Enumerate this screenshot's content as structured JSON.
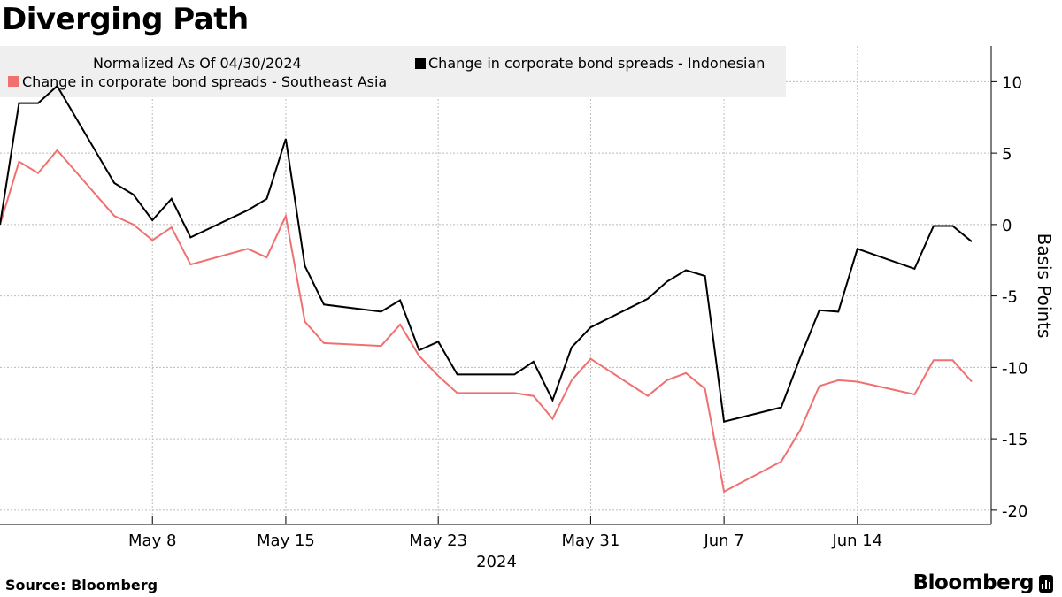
{
  "title": "Diverging Path",
  "source": "Source: Bloomberg",
  "brand": "Bloomberg",
  "colors": {
    "indonesian": "#000000",
    "southeast_asia": "#f07070",
    "grid": "#bbbbbb",
    "legend_bg": "#efefef"
  },
  "chart_data": {
    "type": "line",
    "title": "Diverging Path",
    "ylabel": "Basis Points",
    "xlabel": "2024",
    "legend_note": "Normalized As Of 04/30/2024",
    "ylim": [
      -21,
      12.5
    ],
    "y_ticks": [
      10,
      5,
      0,
      -5,
      -10,
      -15,
      -20
    ],
    "grid": true,
    "legend_placement": "top-left",
    "x_tick_labels": [
      {
        "label": "May 8",
        "date": "2024-05-08"
      },
      {
        "label": "May 15",
        "date": "2024-05-15"
      },
      {
        "label": "May 23",
        "date": "2024-05-23"
      },
      {
        "label": "May 31",
        "date": "2024-05-31"
      },
      {
        "label": "Jun 7",
        "date": "2024-06-07"
      },
      {
        "label": "Jun 14",
        "date": "2024-06-14"
      }
    ],
    "x": [
      "2024-04-30",
      "2024-05-01",
      "2024-05-02",
      "2024-05-03",
      "2024-05-06",
      "2024-05-07",
      "2024-05-08",
      "2024-05-09",
      "2024-05-10",
      "2024-05-13",
      "2024-05-14",
      "2024-05-15",
      "2024-05-16",
      "2024-05-17",
      "2024-05-20",
      "2024-05-21",
      "2024-05-22",
      "2024-05-23",
      "2024-05-24",
      "2024-05-27",
      "2024-05-28",
      "2024-05-29",
      "2024-05-30",
      "2024-05-31",
      "2024-06-03",
      "2024-06-04",
      "2024-06-05",
      "2024-06-06",
      "2024-06-07",
      "2024-06-10",
      "2024-06-11",
      "2024-06-12",
      "2024-06-13",
      "2024-06-14",
      "2024-06-17",
      "2024-06-18",
      "2024-06-19",
      "2024-06-20"
    ],
    "series": [
      {
        "name": "Change in corporate bond spreads - Indonesian",
        "color": "#000000",
        "values": [
          0,
          8.5,
          8.5,
          9.7,
          2.9,
          2.1,
          0.3,
          1.8,
          -0.9,
          1.0,
          1.8,
          6.0,
          -2.9,
          -5.6,
          -6.1,
          -5.3,
          -8.8,
          -8.2,
          -10.5,
          -10.5,
          -9.6,
          -12.3,
          -8.6,
          -7.2,
          -5.2,
          -4.0,
          -3.2,
          -3.6,
          -13.8,
          -12.8,
          -9.3,
          -6.0,
          -6.1,
          -1.7,
          -3.1,
          -0.1,
          -0.1,
          -1.2
        ]
      },
      {
        "name": "Change in corporate bond spreads - Southeast Asia",
        "color": "#f07070",
        "values": [
          0,
          4.4,
          3.6,
          5.2,
          0.6,
          0.0,
          -1.1,
          -0.2,
          -2.8,
          -1.7,
          -2.3,
          0.6,
          -6.8,
          -8.3,
          -8.5,
          -7.0,
          -9.2,
          -10.6,
          -11.8,
          -11.8,
          -12.0,
          -13.6,
          -10.9,
          -9.4,
          -12.0,
          -10.9,
          -10.4,
          -11.5,
          -18.7,
          -16.6,
          -14.4,
          -11.3,
          -10.9,
          -11.0,
          -11.9,
          -9.5,
          -9.5,
          -11.0
        ]
      }
    ]
  }
}
